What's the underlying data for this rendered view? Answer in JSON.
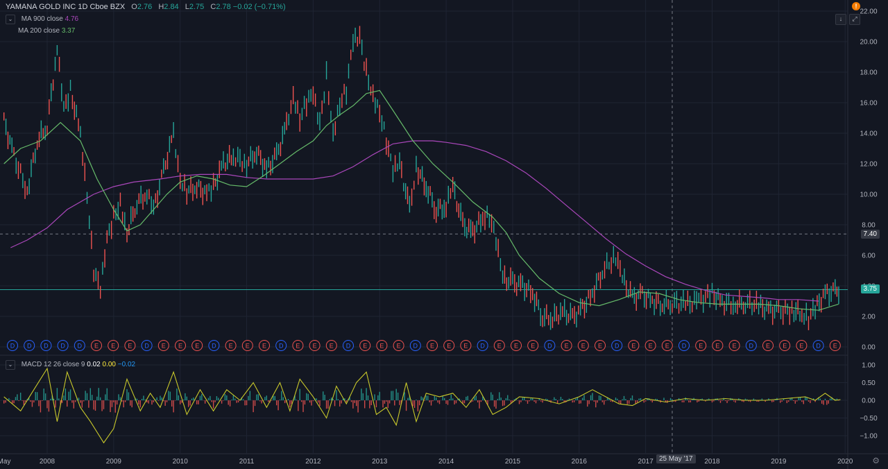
{
  "header": {
    "symbol": "YAMANA GOLD INC",
    "interval": "1D",
    "exchange": "Cboe BZX",
    "open_label": "O",
    "open": "2.76",
    "high_label": "H",
    "high": "2.84",
    "low_label": "L",
    "low": "2.75",
    "close_label": "C",
    "close": "2.78",
    "change": "−0.02 (−0.71%)"
  },
  "indicators": [
    {
      "label": "MA 900 close",
      "value": "4.76",
      "color": "#ab47bc"
    },
    {
      "label": "MA 200 close",
      "value": "3.37",
      "color": "#66bb6a"
    }
  ],
  "macd": {
    "label": "MACD 12 26 close 9",
    "v1": "0.02",
    "v2": "0.00",
    "v3": "−0.02"
  },
  "price_tags": {
    "crosshair": "7.40",
    "last": "3.75"
  },
  "crosshair_date": "25 May '17",
  "icons": {
    "alert": "!",
    "arrow": "↓",
    "fullscreen": "⤢",
    "gear": "⚙"
  },
  "colors": {
    "background": "#131722",
    "grid": "#1f2433",
    "up": "#26a69a",
    "down": "#ef5350",
    "ma900": "#ab47bc",
    "ma200": "#66bb6a",
    "macd_line": "#c9c92b",
    "dividend": "#2962ff",
    "earnings": "#ef5350"
  },
  "chart_data": {
    "type": "line",
    "title": "YAMANA GOLD INC",
    "x_tick_labels": [
      "May",
      "2008",
      "2009",
      "2010",
      "2011",
      "2012",
      "2013",
      "2014",
      "2015",
      "2016",
      "2017",
      "2018",
      "2019",
      "2020"
    ],
    "y_tick_labels": [
      "22.00",
      "20.00",
      "18.00",
      "16.00",
      "14.00",
      "12.00",
      "10.00",
      "8.00",
      "6.00",
      "4.00",
      "2.00",
      "0.00"
    ],
    "ylim": [
      0,
      22
    ],
    "series": [
      {
        "name": "price",
        "x": [
          2007.35,
          2007.5,
          2007.7,
          2007.85,
          2008.0,
          2008.15,
          2008.25,
          2008.35,
          2008.5,
          2008.6,
          2008.7,
          2008.8,
          2008.9,
          2009.0,
          2009.1,
          2009.2,
          2009.35,
          2009.5,
          2009.6,
          2009.75,
          2009.9,
          2010.0,
          2010.1,
          2010.25,
          2010.4,
          2010.5,
          2010.65,
          2010.8,
          2011.0,
          2011.15,
          2011.3,
          2011.45,
          2011.6,
          2011.7,
          2011.8,
          2011.9,
          2012.0,
          2012.1,
          2012.2,
          2012.3,
          2012.4,
          2012.5,
          2012.6,
          2012.7,
          2012.8,
          2012.9,
          2013.0,
          2013.1,
          2013.2,
          2013.3,
          2013.45,
          2013.55,
          2013.7,
          2013.85,
          2014.0,
          2014.1,
          2014.25,
          2014.4,
          2014.55,
          2014.65,
          2014.75,
          2014.85,
          2015.0,
          2015.15,
          2015.3,
          2015.45,
          2015.6,
          2015.75,
          2015.9,
          2016.05,
          2016.2,
          2016.35,
          2016.55,
          2016.65,
          2016.8,
          2016.95,
          2017.1,
          2017.25,
          2017.4,
          2017.6,
          2017.8,
          2018.0,
          2018.15,
          2018.35,
          2018.5,
          2018.7,
          2018.85,
          2019.0,
          2019.2,
          2019.35,
          2019.45,
          2019.55,
          2019.7,
          2019.85,
          2019.93
        ],
        "y": [
          14.8,
          12.5,
          10.2,
          13.5,
          14.5,
          19.5,
          15.5,
          16.8,
          14.0,
          10.0,
          5.0,
          3.7,
          7.0,
          8.5,
          9.5,
          7.5,
          9.5,
          10.0,
          9.0,
          11.5,
          14.0,
          11.0,
          10.2,
          10.5,
          10.0,
          10.5,
          12.0,
          12.5,
          12.0,
          12.8,
          11.6,
          12.5,
          14.5,
          16.5,
          15.0,
          16.0,
          16.5,
          14.5,
          17.8,
          14.0,
          16.0,
          16.8,
          20.0,
          20.2,
          18.0,
          16.5,
          15.5,
          13.5,
          11.5,
          12.0,
          9.0,
          11.8,
          10.5,
          9.0,
          9.2,
          10.5,
          8.0,
          7.5,
          8.5,
          8.6,
          7.0,
          4.5,
          4.2,
          4.0,
          3.5,
          2.0,
          1.9,
          2.3,
          1.9,
          2.5,
          3.5,
          5.0,
          5.9,
          4.5,
          3.2,
          3.4,
          3.0,
          2.8,
          2.9,
          2.8,
          3.0,
          3.5,
          2.9,
          2.8,
          2.9,
          2.7,
          2.4,
          2.3,
          2.4,
          2.2,
          1.9,
          2.5,
          3.5,
          3.6,
          3.75
        ]
      },
      {
        "name": "MA 900 close",
        "x": [
          2007.45,
          2007.7,
          2008.0,
          2008.3,
          2008.7,
          2009.0,
          2009.3,
          2009.7,
          2010.0,
          2010.3,
          2010.7,
          2011.0,
          2011.3,
          2011.7,
          2012.0,
          2012.3,
          2012.6,
          2012.9,
          2013.2,
          2013.5,
          2013.8,
          2014.0,
          2014.3,
          2014.6,
          2014.9,
          2015.2,
          2015.5,
          2015.8,
          2016.1,
          2016.4,
          2016.7,
          2017.0,
          2017.3,
          2017.6,
          2017.9,
          2018.2,
          2018.5,
          2018.8,
          2019.0,
          2019.3,
          2019.6
        ],
        "y": [
          6.5,
          7.0,
          7.8,
          9.0,
          10.0,
          10.5,
          10.8,
          11.0,
          11.2,
          11.3,
          11.3,
          11.1,
          11.0,
          11.0,
          11.0,
          11.2,
          11.8,
          12.6,
          13.3,
          13.5,
          13.5,
          13.4,
          13.2,
          12.8,
          12.2,
          11.4,
          10.4,
          9.3,
          8.2,
          7.1,
          6.1,
          5.3,
          4.6,
          4.1,
          3.7,
          3.4,
          3.3,
          3.2,
          3.1,
          3.1,
          3.0
        ]
      },
      {
        "name": "MA 200 close",
        "x": [
          2007.35,
          2007.6,
          2007.9,
          2008.2,
          2008.5,
          2008.75,
          2009.0,
          2009.2,
          2009.4,
          2009.6,
          2009.8,
          2010.0,
          2010.25,
          2010.5,
          2010.75,
          2011.0,
          2011.25,
          2011.5,
          2011.75,
          2012.0,
          2012.2,
          2012.4,
          2012.6,
          2012.8,
          2013.0,
          2013.2,
          2013.5,
          2013.8,
          2014.1,
          2014.4,
          2014.7,
          2014.9,
          2015.1,
          2015.4,
          2015.7,
          2016.0,
          2016.3,
          2016.6,
          2016.9,
          2017.2,
          2017.5,
          2017.8,
          2018.1,
          2018.4,
          2018.7,
          2019.0,
          2019.3,
          2019.6,
          2019.9
        ],
        "y": [
          12.0,
          13.0,
          13.5,
          14.7,
          13.5,
          11.0,
          9.0,
          7.6,
          8.0,
          9.0,
          10.0,
          10.8,
          11.2,
          11.0,
          10.6,
          10.5,
          11.2,
          12.0,
          12.8,
          13.5,
          14.5,
          15.2,
          15.8,
          16.6,
          16.8,
          15.5,
          13.5,
          12.0,
          10.8,
          9.5,
          8.5,
          7.5,
          6.0,
          4.5,
          3.5,
          2.9,
          2.7,
          3.1,
          3.6,
          3.5,
          3.1,
          2.9,
          2.8,
          2.8,
          2.8,
          2.7,
          2.5,
          2.4,
          2.8
        ]
      },
      {
        "name": "MACD 12 26 close 9",
        "x": [
          2007.35,
          2007.6,
          2007.8,
          2008.0,
          2008.15,
          2008.3,
          2008.5,
          2008.65,
          2008.85,
          2009.0,
          2009.2,
          2009.4,
          2009.55,
          2009.7,
          2009.9,
          2010.1,
          2010.3,
          2010.5,
          2010.7,
          2010.9,
          2011.1,
          2011.3,
          2011.5,
          2011.65,
          2011.8,
          2012.0,
          2012.2,
          2012.35,
          2012.5,
          2012.65,
          2012.8,
          2012.95,
          2013.1,
          2013.25,
          2013.4,
          2013.55,
          2013.7,
          2013.9,
          2014.1,
          2014.3,
          2014.5,
          2014.7,
          2014.9,
          2015.1,
          2015.4,
          2015.7,
          2016.0,
          2016.2,
          2016.4,
          2016.6,
          2016.8,
          2017.0,
          2017.3,
          2017.6,
          2017.9,
          2018.2,
          2018.5,
          2018.8,
          2019.1,
          2019.4,
          2019.55,
          2019.7,
          2019.85,
          2019.93
        ],
        "y": [
          0.1,
          -0.3,
          0.3,
          0.9,
          -0.6,
          0.8,
          -0.2,
          -0.6,
          -1.2,
          -0.8,
          0.6,
          -0.3,
          0.2,
          -0.2,
          0.8,
          -0.4,
          0.3,
          -0.3,
          0.3,
          0.0,
          0.5,
          -0.2,
          0.5,
          -0.3,
          0.6,
          0.1,
          -0.5,
          0.4,
          -0.1,
          0.5,
          0.8,
          -0.4,
          -0.2,
          -0.7,
          0.5,
          -0.6,
          0.2,
          0.1,
          0.2,
          -0.2,
          0.3,
          -0.4,
          -0.2,
          0.1,
          0.05,
          -0.1,
          0.1,
          0.3,
          0.1,
          -0.1,
          -0.15,
          0.05,
          -0.05,
          0.05,
          0.0,
          0.05,
          0.0,
          0.0,
          0.05,
          0.1,
          0.0,
          0.2,
          0.0,
          0.02
        ]
      }
    ]
  }
}
